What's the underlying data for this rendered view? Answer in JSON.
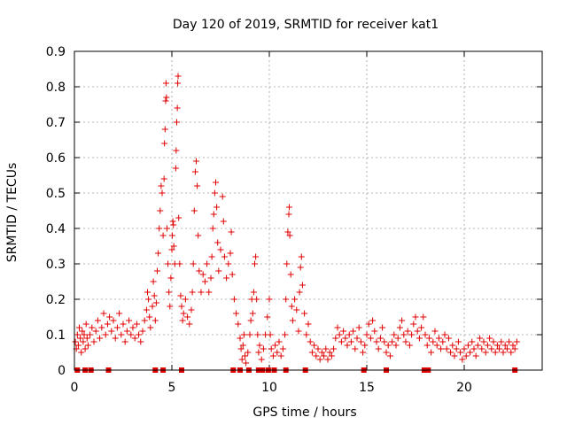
{
  "chart_data": {
    "type": "scatter",
    "title": "Day 120 of 2019, SRMTID for receiver kat1",
    "xlabel": "GPS time / hours",
    "ylabel": "SRMTID / TECUs",
    "xlim": [
      0,
      24
    ],
    "ylim": [
      0,
      0.9
    ],
    "x_ticks": [
      0,
      5,
      10,
      15,
      20
    ],
    "x_tick_labels": [
      "0",
      "5",
      "10",
      "15",
      "20"
    ],
    "y_ticks": [
      0,
      0.1,
      0.2,
      0.3,
      0.4,
      0.5,
      0.6,
      0.7,
      0.8,
      0.9
    ],
    "y_tick_labels": [
      "0",
      "0.1",
      "0.2",
      "0.3",
      "0.4",
      "0.5",
      "0.6",
      "0.7",
      "0.8",
      "0.9"
    ],
    "grid": true,
    "marker": "+",
    "color": "#e00000",
    "series": [
      {
        "name": "kat1",
        "points": [
          [
            0.05,
            0.08
          ],
          [
            0.1,
            0.06
          ],
          [
            0.15,
            0.1
          ],
          [
            0.2,
            0.07
          ],
          [
            0.25,
            0.12
          ],
          [
            0.3,
            0.09
          ],
          [
            0.35,
            0.05
          ],
          [
            0.4,
            0.11
          ],
          [
            0.45,
            0.08
          ],
          [
            0.5,
            0.1
          ],
          [
            0.55,
            0.06
          ],
          [
            0.6,
            0.13
          ],
          [
            0.65,
            0.09
          ],
          [
            0.7,
            0.07
          ],
          [
            0.8,
            0.1
          ],
          [
            0.9,
            0.12
          ],
          [
            1.0,
            0.08
          ],
          [
            1.1,
            0.11
          ],
          [
            1.2,
            0.14
          ],
          [
            1.3,
            0.09
          ],
          [
            1.4,
            0.12
          ],
          [
            1.5,
            0.16
          ],
          [
            1.6,
            0.1
          ],
          [
            1.7,
            0.13
          ],
          [
            1.8,
            0.15
          ],
          [
            1.9,
            0.11
          ],
          [
            2.0,
            0.14
          ],
          [
            2.1,
            0.09
          ],
          [
            2.2,
            0.12
          ],
          [
            2.3,
            0.16
          ],
          [
            2.4,
            0.1
          ],
          [
            2.5,
            0.13
          ],
          [
            2.6,
            0.08
          ],
          [
            2.7,
            0.11
          ],
          [
            2.8,
            0.14
          ],
          [
            2.9,
            0.1
          ],
          [
            3.0,
            0.12
          ],
          [
            3.1,
            0.09
          ],
          [
            3.2,
            0.13
          ],
          [
            3.3,
            0.1
          ],
          [
            3.4,
            0.08
          ],
          [
            3.5,
            0.11
          ],
          [
            3.6,
            0.14
          ],
          [
            3.7,
            0.17
          ],
          [
            3.75,
            0.22
          ],
          [
            3.8,
            0.2
          ],
          [
            3.85,
            0.15
          ],
          [
            3.9,
            0.12
          ],
          [
            4.0,
            0.18
          ],
          [
            4.05,
            0.25
          ],
          [
            4.1,
            0.21
          ],
          [
            4.15,
            0.14
          ],
          [
            4.2,
            0.19
          ],
          [
            4.25,
            0.28
          ],
          [
            4.3,
            0.33
          ],
          [
            4.35,
            0.4
          ],
          [
            4.4,
            0.45
          ],
          [
            4.45,
            0.52
          ],
          [
            4.5,
            0.5
          ],
          [
            4.55,
            0.38
          ],
          [
            4.6,
            0.54
          ],
          [
            4.62,
            0.64
          ],
          [
            4.65,
            0.68
          ],
          [
            4.68,
            0.76
          ],
          [
            4.7,
            0.81
          ],
          [
            4.72,
            0.77
          ],
          [
            4.75,
            0.4
          ],
          [
            4.8,
            0.3
          ],
          [
            4.85,
            0.22
          ],
          [
            4.9,
            0.18
          ],
          [
            4.95,
            0.26
          ],
          [
            5.0,
            0.34
          ],
          [
            5.02,
            0.38
          ],
          [
            5.05,
            0.42
          ],
          [
            5.08,
            0.41
          ],
          [
            5.1,
            0.35
          ],
          [
            5.15,
            0.3
          ],
          [
            5.2,
            0.57
          ],
          [
            5.22,
            0.62
          ],
          [
            5.25,
            0.7
          ],
          [
            5.28,
            0.74
          ],
          [
            5.3,
            0.81
          ],
          [
            5.32,
            0.83
          ],
          [
            5.35,
            0.43
          ],
          [
            5.4,
            0.3
          ],
          [
            5.45,
            0.21
          ],
          [
            5.5,
            0.18
          ],
          [
            5.55,
            0.14
          ],
          [
            5.6,
            0.16
          ],
          [
            5.7,
            0.2
          ],
          [
            5.8,
            0.15
          ],
          [
            5.9,
            0.13
          ],
          [
            6.0,
            0.17
          ],
          [
            6.05,
            0.22
          ],
          [
            6.1,
            0.3
          ],
          [
            6.15,
            0.45
          ],
          [
            6.2,
            0.56
          ],
          [
            6.25,
            0.59
          ],
          [
            6.3,
            0.52
          ],
          [
            6.35,
            0.38
          ],
          [
            6.4,
            0.28
          ],
          [
            6.5,
            0.22
          ],
          [
            6.6,
            0.27
          ],
          [
            6.7,
            0.25
          ],
          [
            6.8,
            0.3
          ],
          [
            6.9,
            0.22
          ],
          [
            7.0,
            0.26
          ],
          [
            7.05,
            0.32
          ],
          [
            7.1,
            0.4
          ],
          [
            7.15,
            0.44
          ],
          [
            7.2,
            0.5
          ],
          [
            7.25,
            0.53
          ],
          [
            7.3,
            0.46
          ],
          [
            7.35,
            0.36
          ],
          [
            7.4,
            0.28
          ],
          [
            7.5,
            0.34
          ],
          [
            7.6,
            0.49
          ],
          [
            7.65,
            0.42
          ],
          [
            7.7,
            0.32
          ],
          [
            7.8,
            0.26
          ],
          [
            7.9,
            0.3
          ],
          [
            8.0,
            0.33
          ],
          [
            8.05,
            0.39
          ],
          [
            8.1,
            0.27
          ],
          [
            8.2,
            0.2
          ],
          [
            8.3,
            0.16
          ],
          [
            8.4,
            0.13
          ],
          [
            8.5,
            0.09
          ],
          [
            8.55,
            0.06
          ],
          [
            8.6,
            0.03
          ],
          [
            8.65,
            0.07
          ],
          [
            8.7,
            0.1
          ],
          [
            8.75,
            0.04
          ],
          [
            8.8,
            0.02
          ],
          [
            8.9,
            0.05
          ],
          [
            9.0,
            0.1
          ],
          [
            9.05,
            0.14
          ],
          [
            9.1,
            0.2
          ],
          [
            9.15,
            0.16
          ],
          [
            9.2,
            0.22
          ],
          [
            9.25,
            0.3
          ],
          [
            9.3,
            0.32
          ],
          [
            9.35,
            0.2
          ],
          [
            9.4,
            0.1
          ],
          [
            9.45,
            0.05
          ],
          [
            9.5,
            0.07
          ],
          [
            9.6,
            0.03
          ],
          [
            9.7,
            0.06
          ],
          [
            9.8,
            0.1
          ],
          [
            9.9,
            0.15
          ],
          [
            10.0,
            0.2
          ],
          [
            10.05,
            0.1
          ],
          [
            10.1,
            0.06
          ],
          [
            10.2,
            0.04
          ],
          [
            10.3,
            0.07
          ],
          [
            10.4,
            0.05
          ],
          [
            10.5,
            0.08
          ],
          [
            10.6,
            0.04
          ],
          [
            10.7,
            0.06
          ],
          [
            10.8,
            0.1
          ],
          [
            10.85,
            0.2
          ],
          [
            10.9,
            0.3
          ],
          [
            10.95,
            0.39
          ],
          [
            11.0,
            0.44
          ],
          [
            11.02,
            0.46
          ],
          [
            11.05,
            0.38
          ],
          [
            11.1,
            0.27
          ],
          [
            11.15,
            0.18
          ],
          [
            11.2,
            0.14
          ],
          [
            11.3,
            0.2
          ],
          [
            11.4,
            0.17
          ],
          [
            11.5,
            0.11
          ],
          [
            11.55,
            0.22
          ],
          [
            11.6,
            0.29
          ],
          [
            11.65,
            0.32
          ],
          [
            11.7,
            0.24
          ],
          [
            11.8,
            0.16
          ],
          [
            11.9,
            0.1
          ],
          [
            12.0,
            0.13
          ],
          [
            12.1,
            0.08
          ],
          [
            12.2,
            0.05
          ],
          [
            12.3,
            0.07
          ],
          [
            12.4,
            0.04
          ],
          [
            12.5,
            0.06
          ],
          [
            12.6,
            0.03
          ],
          [
            12.7,
            0.05
          ],
          [
            12.8,
            0.04
          ],
          [
            12.9,
            0.06
          ],
          [
            13.0,
            0.03
          ],
          [
            13.1,
            0.05
          ],
          [
            13.2,
            0.04
          ],
          [
            13.3,
            0.06
          ],
          [
            13.4,
            0.09
          ],
          [
            13.5,
            0.12
          ],
          [
            13.6,
            0.1
          ],
          [
            13.7,
            0.08
          ],
          [
            13.8,
            0.11
          ],
          [
            13.9,
            0.09
          ],
          [
            14.0,
            0.07
          ],
          [
            14.1,
            0.1
          ],
          [
            14.2,
            0.08
          ],
          [
            14.3,
            0.11
          ],
          [
            14.4,
            0.06
          ],
          [
            14.5,
            0.09
          ],
          [
            14.6,
            0.12
          ],
          [
            14.7,
            0.08
          ],
          [
            14.8,
            0.05
          ],
          [
            14.9,
            0.07
          ],
          [
            15.0,
            0.1
          ],
          [
            15.1,
            0.13
          ],
          [
            15.2,
            0.09
          ],
          [
            15.3,
            0.14
          ],
          [
            15.4,
            0.11
          ],
          [
            15.5,
            0.08
          ],
          [
            15.6,
            0.06
          ],
          [
            15.7,
            0.09
          ],
          [
            15.8,
            0.12
          ],
          [
            15.9,
            0.08
          ],
          [
            16.0,
            0.05
          ],
          [
            16.1,
            0.07
          ],
          [
            16.2,
            0.04
          ],
          [
            16.3,
            0.08
          ],
          [
            16.4,
            0.1
          ],
          [
            16.5,
            0.07
          ],
          [
            16.6,
            0.09
          ],
          [
            16.7,
            0.12
          ],
          [
            16.8,
            0.14
          ],
          [
            16.9,
            0.1
          ],
          [
            17.0,
            0.08
          ],
          [
            17.1,
            0.11
          ],
          [
            17.2,
            0.07
          ],
          [
            17.3,
            0.1
          ],
          [
            17.4,
            0.13
          ],
          [
            17.5,
            0.15
          ],
          [
            17.6,
            0.11
          ],
          [
            17.7,
            0.09
          ],
          [
            17.8,
            0.12
          ],
          [
            17.9,
            0.15
          ],
          [
            18.0,
            0.1
          ],
          [
            18.1,
            0.07
          ],
          [
            18.2,
            0.09
          ],
          [
            18.3,
            0.05
          ],
          [
            18.4,
            0.08
          ],
          [
            18.5,
            0.11
          ],
          [
            18.6,
            0.07
          ],
          [
            18.7,
            0.09
          ],
          [
            18.8,
            0.06
          ],
          [
            18.9,
            0.08
          ],
          [
            19.0,
            0.1
          ],
          [
            19.1,
            0.06
          ],
          [
            19.2,
            0.09
          ],
          [
            19.3,
            0.05
          ],
          [
            19.4,
            0.07
          ],
          [
            19.5,
            0.04
          ],
          [
            19.6,
            0.06
          ],
          [
            19.7,
            0.08
          ],
          [
            19.8,
            0.05
          ],
          [
            19.9,
            0.03
          ],
          [
            20.0,
            0.06
          ],
          [
            20.1,
            0.04
          ],
          [
            20.2,
            0.07
          ],
          [
            20.3,
            0.05
          ],
          [
            20.4,
            0.08
          ],
          [
            20.5,
            0.06
          ],
          [
            20.6,
            0.04
          ],
          [
            20.7,
            0.07
          ],
          [
            20.8,
            0.09
          ],
          [
            20.9,
            0.06
          ],
          [
            21.0,
            0.08
          ],
          [
            21.1,
            0.05
          ],
          [
            21.2,
            0.07
          ],
          [
            21.3,
            0.09
          ],
          [
            21.4,
            0.06
          ],
          [
            21.5,
            0.08
          ],
          [
            21.6,
            0.05
          ],
          [
            21.7,
            0.07
          ],
          [
            21.8,
            0.06
          ],
          [
            21.9,
            0.08
          ],
          [
            22.0,
            0.05
          ],
          [
            22.1,
            0.07
          ],
          [
            22.2,
            0.06
          ],
          [
            22.3,
            0.08
          ],
          [
            22.4,
            0.05
          ],
          [
            22.5,
            0.07
          ],
          [
            22.6,
            0.06
          ],
          [
            22.7,
            0.08
          ]
        ]
      }
    ],
    "zero_markers_x": [
      0.15,
      0.55,
      0.85,
      1.75,
      4.15,
      4.55,
      5.5,
      8.15,
      8.5,
      8.95,
      9.45,
      9.65,
      9.95,
      10.25,
      10.85,
      11.85,
      14.85,
      16.0,
      17.95,
      18.15,
      22.6
    ]
  }
}
